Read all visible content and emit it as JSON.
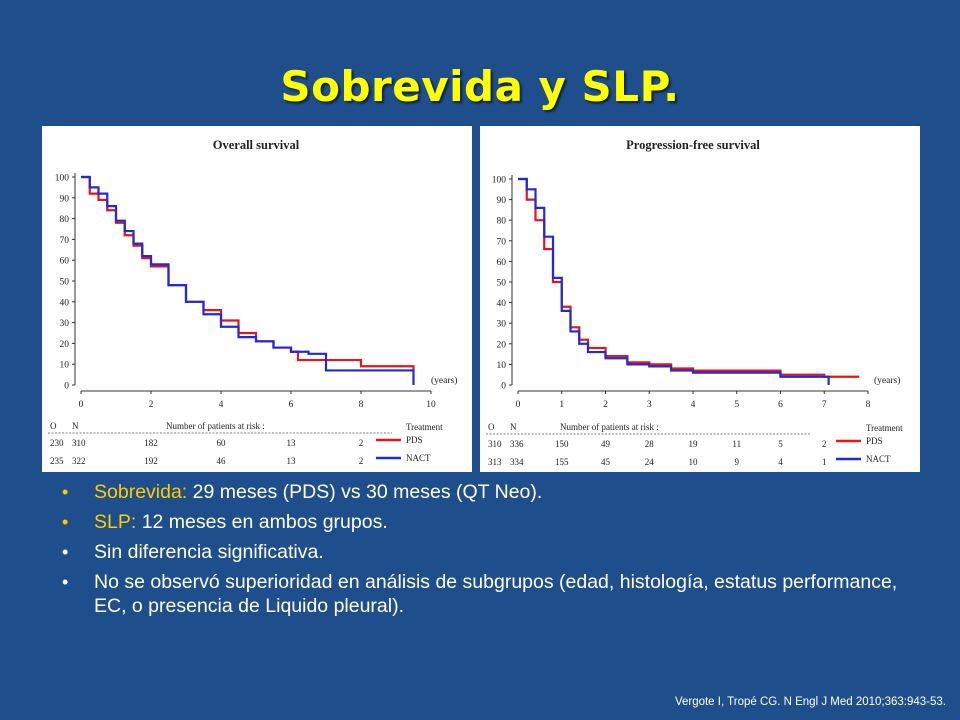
{
  "slide": {
    "title": "Sobrevida y SLP.",
    "citation": "Vergote I, Tropé CG. N Engl J Med 2010;363:943-53."
  },
  "bullets": [
    {
      "highlight": "Sobrevida:",
      "text": " 29 meses (PDS) vs 30 meses (QT Neo)."
    },
    {
      "highlight": "SLP:",
      "text": " 12 meses en ambos grupos."
    },
    {
      "highlight": "",
      "text": "Sin diferencia significativa."
    },
    {
      "highlight": "",
      "text": "No se observó superioridad en análisis de subgrupos (edad, histología, estatus  performance, EC, o presencia de Liquido pleural)."
    }
  ],
  "colors": {
    "background": "#1f4e8c",
    "title": "#ffff00",
    "highlight": "#ffcc00",
    "PDS": "#e8141c",
    "NACT": "#1f2bd6"
  },
  "chart_data": [
    {
      "type": "line",
      "title": "Overall survival",
      "xlabel": "(years)",
      "ylabel": "",
      "xlim": [
        0,
        10
      ],
      "ylim": [
        0,
        100
      ],
      "xticks": [
        0,
        2,
        4,
        6,
        8,
        10
      ],
      "yticks": [
        0,
        10,
        20,
        30,
        40,
        50,
        60,
        70,
        80,
        90,
        100
      ],
      "legend_title": "Treatment",
      "legend_position": "bottom-right",
      "risk_title": "Number of patients at risk :",
      "risk_headers": [
        "O",
        "N"
      ],
      "series": [
        {
          "name": "PDS",
          "color": "#e8141c",
          "x": [
            0,
            0.25,
            0.5,
            0.75,
            1,
            1.25,
            1.5,
            1.75,
            2,
            2.5,
            3,
            3.5,
            4,
            4.5,
            5,
            5.5,
            6,
            6.2,
            7,
            8,
            9,
            9.5
          ],
          "y": [
            100,
            92,
            89,
            84,
            78,
            72,
            67,
            61,
            57,
            48,
            40,
            36,
            31,
            25,
            21,
            18,
            16,
            12,
            12,
            9,
            9,
            7
          ],
          "risk": [
            "230",
            "310",
            "182",
            "60",
            "13",
            "2"
          ]
        },
        {
          "name": "NACT",
          "color": "#1f2bd6",
          "x": [
            0,
            0.25,
            0.5,
            0.75,
            1,
            1.25,
            1.5,
            1.75,
            2,
            2.5,
            3,
            3.5,
            4,
            4.5,
            5,
            5.5,
            6,
            6.5,
            7,
            8,
            9,
            9.5
          ],
          "y": [
            100,
            95,
            92,
            86,
            79,
            74,
            68,
            62,
            58,
            48,
            40,
            34,
            28,
            23,
            21,
            18,
            16,
            15,
            7,
            7,
            7,
            0
          ],
          "risk": [
            "235",
            "322",
            "192",
            "46",
            "13",
            "2"
          ]
        }
      ],
      "risk_x": [
        0,
        2,
        4,
        6,
        8
      ]
    },
    {
      "type": "line",
      "title": "Progression-free survival",
      "xlabel": "(years)",
      "ylabel": "",
      "xlim": [
        0,
        8
      ],
      "ylim": [
        0,
        100
      ],
      "xticks": [
        0,
        1,
        2,
        3,
        4,
        5,
        6,
        7,
        8
      ],
      "yticks": [
        0,
        10,
        20,
        30,
        40,
        50,
        60,
        70,
        80,
        90,
        100
      ],
      "legend_title": "Treatment",
      "legend_position": "bottom-right",
      "risk_title": "Number of patients at risk :",
      "risk_headers": [
        "O",
        "N"
      ],
      "series": [
        {
          "name": "PDS",
          "color": "#e8141c",
          "x": [
            0,
            0.2,
            0.4,
            0.6,
            0.8,
            1,
            1.2,
            1.4,
            1.6,
            2,
            2.5,
            3,
            3.5,
            4,
            5,
            6,
            7,
            7.8
          ],
          "y": [
            100,
            90,
            80,
            66,
            50,
            38,
            28,
            22,
            18,
            14,
            11,
            10,
            8,
            7,
            7,
            5,
            4,
            4
          ],
          "risk": [
            "310",
            "336",
            "150",
            "49",
            "28",
            "19",
            "11",
            "5",
            "2"
          ]
        },
        {
          "name": "NACT",
          "color": "#1f2bd6",
          "x": [
            0,
            0.2,
            0.4,
            0.6,
            0.8,
            1,
            1.2,
            1.4,
            1.6,
            2,
            2.5,
            3,
            3.5,
            4,
            5,
            6,
            7,
            7.1
          ],
          "y": [
            100,
            95,
            86,
            72,
            52,
            36,
            26,
            20,
            16,
            13,
            10,
            9,
            7,
            6,
            6,
            4,
            4,
            0
          ],
          "risk": [
            "313",
            "334",
            "155",
            "45",
            "24",
            "10",
            "9",
            "4",
            "1"
          ]
        }
      ],
      "risk_x": [
        0,
        1,
        2,
        3,
        4,
        5,
        6,
        7,
        8
      ]
    }
  ]
}
